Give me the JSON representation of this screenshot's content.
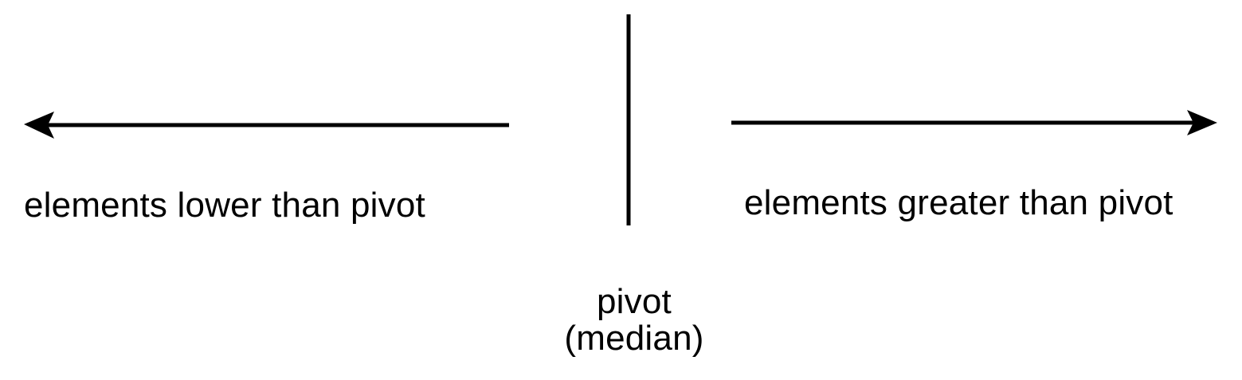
{
  "diagram": {
    "left_label": "elements lower than pivot",
    "right_label": "elements greater than pivot",
    "pivot_label": "pivot",
    "pivot_sublabel": "(median)",
    "stroke_color": "#000000",
    "background_color": "#ffffff"
  }
}
